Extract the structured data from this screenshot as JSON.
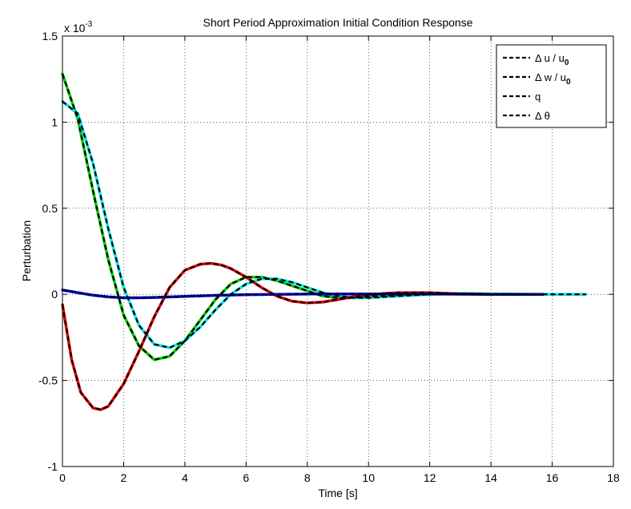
{
  "chart_data": {
    "type": "line",
    "title": "Short Period Approximation Initial Condition Response",
    "xlabel": "Time [s]",
    "ylabel": "Perturbation",
    "y_multiplier_base": "x 10",
    "y_multiplier_exp": "-3",
    "xlim": [
      0,
      18
    ],
    "ylim": [
      -1,
      1.5
    ],
    "x_ticks": [
      "0",
      "2",
      "4",
      "6",
      "8",
      "10",
      "12",
      "14",
      "16",
      "18"
    ],
    "y_ticks": [
      "-1",
      "-0.5",
      "0",
      "0.5",
      "1",
      "1.5"
    ],
    "grid": true,
    "legend_position": "top-right",
    "legend": [
      {
        "base": "Δ u / u",
        "sub": "0"
      },
      {
        "base": "Δ w / u",
        "sub": "0"
      },
      {
        "base": "q",
        "sub": ""
      },
      {
        "base": "Δ θ",
        "sub": ""
      }
    ],
    "series": [
      {
        "color": "#00cc00",
        "overlay": "dashed-black",
        "x": [
          0,
          0.5,
          1,
          1.5,
          2,
          2.5,
          3,
          3.5,
          4,
          4.5,
          5,
          5.5,
          6,
          6.5,
          7,
          7.5,
          8,
          8.5,
          9,
          9.5,
          10,
          10.5,
          11,
          11.5,
          12,
          13,
          14,
          15,
          15.7
        ],
        "y": [
          1.28,
          1.02,
          0.6,
          0.2,
          -0.12,
          -0.3,
          -0.38,
          -0.36,
          -0.27,
          -0.15,
          -0.03,
          0.06,
          0.1,
          0.1,
          0.08,
          0.05,
          0.02,
          -0.01,
          -0.02,
          -0.02,
          -0.015,
          -0.01,
          -0.005,
          0,
          0.003,
          0.004,
          0.002,
          0,
          0
        ]
      },
      {
        "color": "#00e5e5",
        "overlay": "dashed-black",
        "x": [
          0,
          0.5,
          1,
          1.5,
          2,
          2.5,
          3,
          3.5,
          4,
          4.5,
          5,
          5.5,
          6,
          6.5,
          7,
          7.5,
          8,
          8.5,
          9,
          9.5,
          10,
          10.5,
          11,
          11.5,
          12,
          13,
          14,
          15,
          16,
          17.1
        ],
        "y": [
          1.12,
          1.05,
          0.76,
          0.38,
          0.04,
          -0.18,
          -0.29,
          -0.31,
          -0.27,
          -0.19,
          -0.09,
          0,
          0.06,
          0.09,
          0.09,
          0.07,
          0.04,
          0.01,
          -0.01,
          -0.02,
          -0.02,
          -0.015,
          -0.01,
          -0.005,
          0,
          0.004,
          0.003,
          0.001,
          0,
          0
        ]
      },
      {
        "color": "#dd0000",
        "overlay": "dashed-black",
        "x": [
          0,
          0.3,
          0.6,
          1,
          1.25,
          1.5,
          2,
          2.5,
          3,
          3.5,
          4,
          4.5,
          4.85,
          5.2,
          5.5,
          6,
          6.5,
          7,
          7.5,
          8,
          8.5,
          9,
          9.5,
          10,
          10.5,
          11,
          11.5,
          12,
          12.5,
          13,
          14,
          15,
          15.7
        ],
        "y": [
          -0.06,
          -0.38,
          -0.57,
          -0.66,
          -0.67,
          -0.65,
          -0.52,
          -0.33,
          -0.13,
          0.04,
          0.14,
          0.175,
          0.18,
          0.17,
          0.15,
          0.1,
          0.04,
          -0.01,
          -0.04,
          -0.05,
          -0.045,
          -0.03,
          -0.015,
          -0.005,
          0.005,
          0.01,
          0.01,
          0.01,
          0.006,
          0.003,
          0,
          0,
          0
        ]
      },
      {
        "color": "#0000dd",
        "overlay": "dashed-black",
        "x": [
          0,
          0.5,
          1,
          1.5,
          2,
          2.5,
          3,
          4,
          5,
          6,
          7,
          8,
          9,
          10,
          11,
          12,
          13,
          14,
          15.7
        ],
        "y": [
          0.025,
          0.01,
          -0.005,
          -0.015,
          -0.02,
          -0.02,
          -0.018,
          -0.012,
          -0.006,
          -0.002,
          0,
          0.002,
          0.002,
          0.002,
          0.002,
          0.002,
          0.001,
          0,
          0
        ]
      }
    ]
  }
}
